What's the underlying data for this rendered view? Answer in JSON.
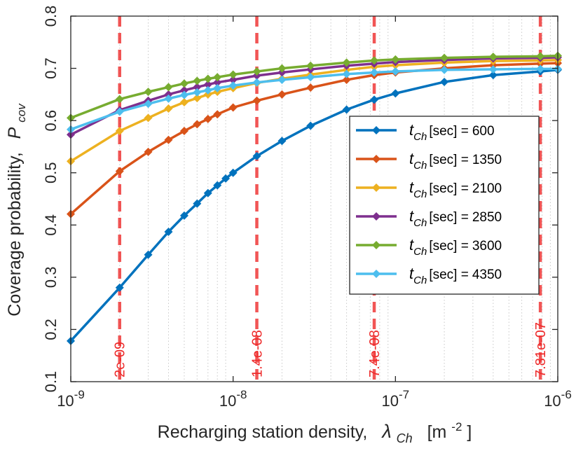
{
  "chart_data": {
    "type": "line",
    "title": "",
    "xlabel": "Recharging station density,",
    "xlabel_symbol": "λ",
    "xlabel_symbol_sub": "Ch",
    "xlabel_unit": "[m",
    "xlabel_unit_sup": "-2",
    "xlabel_unit_close": "]",
    "ylabel": "Coverage probability,",
    "ylabel_symbol": "P",
    "ylabel_symbol_sub": "cov",
    "xscale": "log",
    "xlim": [
      1e-09,
      1e-06
    ],
    "ylim": [
      0.1,
      0.8
    ],
    "grid": "x-minor dotted",
    "xticks": [
      {
        "value": 1e-09,
        "base": "10",
        "exp": "-9"
      },
      {
        "value": 1e-08,
        "base": "10",
        "exp": "-8"
      },
      {
        "value": 1e-07,
        "base": "10",
        "exp": "-7"
      },
      {
        "value": 1e-06,
        "base": "10",
        "exp": "-6"
      }
    ],
    "yticks": [
      {
        "value": 0.1,
        "label": "0.1"
      },
      {
        "value": 0.2,
        "label": "0.2"
      },
      {
        "value": 0.3,
        "label": "0.3"
      },
      {
        "value": 0.4,
        "label": "0.4"
      },
      {
        "value": 0.5,
        "label": "0.5"
      },
      {
        "value": 0.6,
        "label": "0.6"
      },
      {
        "value": 0.7,
        "label": "0.7"
      },
      {
        "value": 0.8,
        "label": "0.8"
      }
    ],
    "vlines": [
      {
        "x": 2e-09,
        "label": "2e-09"
      },
      {
        "x": 1.4e-08,
        "label": "1.4e-08"
      },
      {
        "x": 7.4e-08,
        "label": "7.4e-08"
      },
      {
        "x": 7.81e-07,
        "label": "7.81e-07"
      }
    ],
    "legend_position": "right-middle",
    "legend_symbol": "t",
    "legend_symbol_sub": "Ch",
    "legend_unit": "[sec] =",
    "series": [
      {
        "name": "600",
        "color": "#0072bd",
        "x": [
          1e-09,
          2e-09,
          3e-09,
          4e-09,
          5e-09,
          6e-09,
          7e-09,
          8e-09,
          9e-09,
          1e-08,
          1.4e-08,
          2e-08,
          3e-08,
          5e-08,
          7.4e-08,
          1e-07,
          2e-07,
          4e-07,
          7.81e-07,
          1e-06
        ],
        "y": [
          0.178,
          0.28,
          0.343,
          0.387,
          0.418,
          0.441,
          0.461,
          0.476,
          0.489,
          0.5,
          0.532,
          0.561,
          0.59,
          0.621,
          0.64,
          0.652,
          0.674,
          0.687,
          0.694,
          0.697
        ]
      },
      {
        "name": "1350",
        "color": "#d95319",
        "x": [
          1e-09,
          2e-09,
          3e-09,
          4e-09,
          5e-09,
          6e-09,
          7e-09,
          8e-09,
          1e-08,
          1.4e-08,
          2e-08,
          3e-08,
          5e-08,
          7.4e-08,
          1e-07,
          2e-07,
          4e-07,
          7.81e-07,
          1e-06
        ],
        "y": [
          0.421,
          0.503,
          0.54,
          0.563,
          0.58,
          0.593,
          0.603,
          0.612,
          0.625,
          0.638,
          0.65,
          0.663,
          0.678,
          0.687,
          0.692,
          0.7,
          0.706,
          0.709,
          0.71
        ]
      },
      {
        "name": "2100",
        "color": "#edb120",
        "x": [
          1e-09,
          2e-09,
          3e-09,
          4e-09,
          5e-09,
          6e-09,
          7e-09,
          8e-09,
          1e-08,
          1.4e-08,
          2e-08,
          3e-08,
          5e-08,
          7.4e-08,
          1e-07,
          2e-07,
          4e-07,
          7.81e-07,
          1e-06
        ],
        "y": [
          0.522,
          0.58,
          0.605,
          0.623,
          0.635,
          0.643,
          0.65,
          0.655,
          0.662,
          0.672,
          0.68,
          0.688,
          0.697,
          0.703,
          0.706,
          0.711,
          0.714,
          0.715,
          0.716
        ]
      },
      {
        "name": "2850",
        "color": "#7e2f8e",
        "x": [
          1e-09,
          2e-09,
          3e-09,
          4e-09,
          5e-09,
          6e-09,
          7e-09,
          8e-09,
          1e-08,
          1.4e-08,
          2e-08,
          3e-08,
          5e-08,
          7.4e-08,
          1e-07,
          2e-07,
          4e-07,
          7.81e-07,
          1e-06
        ],
        "y": [
          0.573,
          0.62,
          0.638,
          0.65,
          0.658,
          0.664,
          0.669,
          0.673,
          0.678,
          0.686,
          0.692,
          0.698,
          0.705,
          0.709,
          0.712,
          0.716,
          0.719,
          0.72,
          0.721
        ]
      },
      {
        "name": "3600",
        "color": "#77ac30",
        "x": [
          1e-09,
          2e-09,
          3e-09,
          4e-09,
          5e-09,
          6e-09,
          7e-09,
          8e-09,
          1e-08,
          1.4e-08,
          2e-08,
          3e-08,
          5e-08,
          7.4e-08,
          1e-07,
          2e-07,
          4e-07,
          7.81e-07,
          1e-06
        ],
        "y": [
          0.605,
          0.641,
          0.655,
          0.664,
          0.671,
          0.676,
          0.68,
          0.683,
          0.688,
          0.694,
          0.7,
          0.705,
          0.711,
          0.715,
          0.717,
          0.72,
          0.722,
          0.723,
          0.724
        ]
      },
      {
        "name": "4350",
        "color": "#4dbeee",
        "x": [
          1e-09,
          2e-09,
          3e-09,
          4e-09,
          5e-09,
          6e-09,
          7e-09,
          8e-09,
          1e-08,
          1.4e-08,
          2e-08,
          3e-08,
          5e-08,
          7.4e-08,
          1e-07,
          2e-07,
          4e-07,
          7.81e-07,
          1e-06
        ],
        "y": [
          0.583,
          0.617,
          0.632,
          0.642,
          0.649,
          0.654,
          0.658,
          0.662,
          0.667,
          0.673,
          0.678,
          0.683,
          0.689,
          0.692,
          0.694,
          0.697,
          0.698,
          0.699,
          0.699
        ]
      }
    ]
  }
}
